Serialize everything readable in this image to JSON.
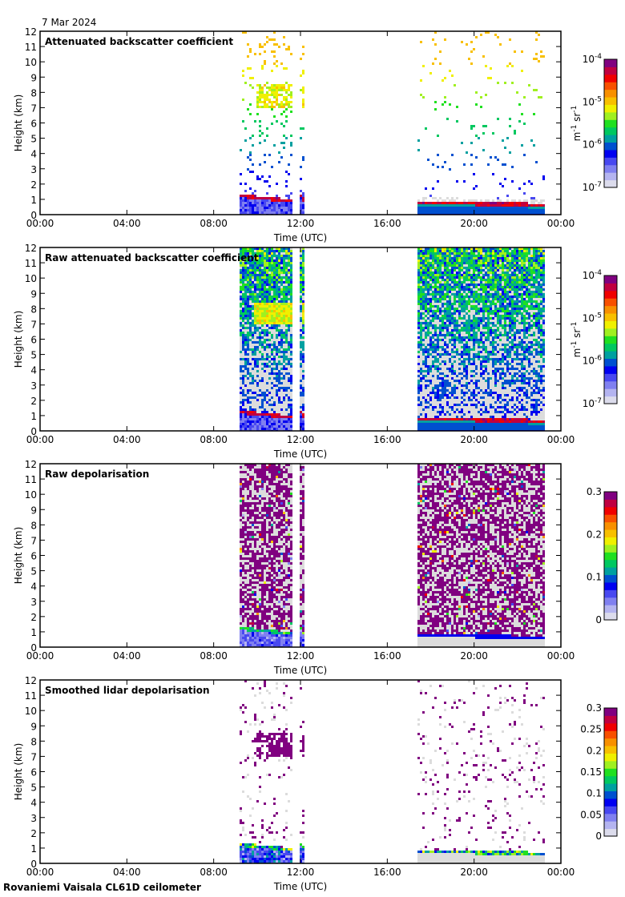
{
  "header": {
    "date": "7 Mar 2024"
  },
  "footer": {
    "instrument": "Rovaniemi Vaisala CL61D ceilometer"
  },
  "colormap": [
    "#dcdcec",
    "#b4b4f0",
    "#8080f0",
    "#4848f0",
    "#0000f0",
    "#0050d0",
    "#00a0a0",
    "#00c860",
    "#20e020",
    "#a0f020",
    "#f0f000",
    "#f8c000",
    "#f89000",
    "#f85000",
    "#f00000",
    "#c00040",
    "#800080"
  ],
  "chart_data": [
    {
      "type": "heatmap",
      "title": "Attenuated backscatter coefficient",
      "xlabel": "Time (UTC)",
      "ylabel": "Height (km)",
      "xlim": [
        0,
        24
      ],
      "ylim": [
        0,
        12
      ],
      "xticks": [
        "00:00",
        "04:00",
        "08:00",
        "12:00",
        "16:00",
        "20:00",
        "00:00"
      ],
      "yticks": [
        "0",
        "1",
        "2",
        "3",
        "4",
        "5",
        "6",
        "7",
        "8",
        "9",
        "10",
        "11",
        "12"
      ],
      "colorbar": {
        "label": "m-1 sr-1",
        "label_main": "m",
        "label_sup1": "-1",
        "label_mid": " sr",
        "label_sup2": "-1",
        "scale": "log",
        "range": [
          1e-07,
          0.0001
        ],
        "ticks": [
          {
            "base": "10",
            "exp": "-4"
          },
          {
            "base": "10",
            "exp": "-5"
          },
          {
            "base": "10",
            "exp": "-6"
          },
          {
            "base": "10",
            "exp": "-7"
          }
        ]
      },
      "data_segments_hours": [
        [
          9.2,
          11.6
        ],
        [
          11.95,
          12.1
        ],
        [
          17.4,
          23.2
        ]
      ],
      "features": [
        "boundary layer top ~1.3 km 09:00-11:30",
        "cloud ~7-8.5 km 09:00-12:00",
        "boundary layer ~0.8 km 17:30-23:00"
      ]
    },
    {
      "type": "heatmap",
      "title": "Raw attenuated backscatter coefficient",
      "xlabel": "Time (UTC)",
      "ylabel": "Height (km)",
      "xlim": [
        0,
        24
      ],
      "ylim": [
        0,
        12
      ],
      "xticks": [
        "00:00",
        "04:00",
        "08:00",
        "12:00",
        "16:00",
        "20:00",
        "00:00"
      ],
      "yticks": [
        "0",
        "1",
        "2",
        "3",
        "4",
        "5",
        "6",
        "7",
        "8",
        "9",
        "10",
        "11",
        "12"
      ],
      "colorbar": {
        "label": "m-1 sr-1",
        "label_main": "m",
        "label_sup1": "-1",
        "label_mid": " sr",
        "label_sup2": "-1",
        "scale": "log",
        "range": [
          1e-07,
          0.0001
        ],
        "ticks": [
          {
            "base": "10",
            "exp": "-4"
          },
          {
            "base": "10",
            "exp": "-5"
          },
          {
            "base": "10",
            "exp": "-6"
          },
          {
            "base": "10",
            "exp": "-7"
          }
        ]
      },
      "data_segments_hours": [
        [
          9.2,
          11.6
        ],
        [
          11.95,
          12.1
        ],
        [
          17.4,
          23.2
        ]
      ]
    },
    {
      "type": "heatmap",
      "title": "Raw depolarisation",
      "xlabel": "Time (UTC)",
      "ylabel": "Height (km)",
      "xlim": [
        0,
        24
      ],
      "ylim": [
        0,
        12
      ],
      "xticks": [
        "00:00",
        "04:00",
        "08:00",
        "12:00",
        "16:00",
        "20:00",
        "00:00"
      ],
      "yticks": [
        "0",
        "1",
        "2",
        "3",
        "4",
        "5",
        "6",
        "7",
        "8",
        "9",
        "10",
        "11",
        "12"
      ],
      "colorbar": {
        "scale": "linear",
        "range": [
          0,
          0.3
        ],
        "ticks": [
          {
            "base": "0.3",
            "exp": ""
          },
          {
            "base": "0.2",
            "exp": ""
          },
          {
            "base": "0.1",
            "exp": ""
          },
          {
            "base": "0",
            "exp": ""
          }
        ]
      },
      "data_segments_hours": [
        [
          9.2,
          11.6
        ],
        [
          11.95,
          12.1
        ],
        [
          17.4,
          23.2
        ]
      ]
    },
    {
      "type": "heatmap",
      "title": "Smoothed lidar depolarisation",
      "xlabel": "Time (UTC)",
      "ylabel": "Height (km)",
      "xlim": [
        0,
        24
      ],
      "ylim": [
        0,
        12
      ],
      "xticks": [
        "00:00",
        "04:00",
        "08:00",
        "12:00",
        "16:00",
        "20:00",
        "00:00"
      ],
      "yticks": [
        "0",
        "1",
        "2",
        "3",
        "4",
        "5",
        "6",
        "7",
        "8",
        "9",
        "10",
        "11",
        "12"
      ],
      "colorbar": {
        "scale": "linear",
        "range": [
          0,
          0.3
        ],
        "ticks": [
          {
            "base": "0.3",
            "exp": ""
          },
          {
            "base": "0.25",
            "exp": ""
          },
          {
            "base": "0.2",
            "exp": ""
          },
          {
            "base": "0.15",
            "exp": ""
          },
          {
            "base": "0.1",
            "exp": ""
          },
          {
            "base": "0.05",
            "exp": ""
          },
          {
            "base": "0",
            "exp": ""
          }
        ]
      },
      "data_segments_hours": [
        [
          9.2,
          11.6
        ],
        [
          11.95,
          12.1
        ],
        [
          17.4,
          23.2
        ]
      ]
    }
  ]
}
